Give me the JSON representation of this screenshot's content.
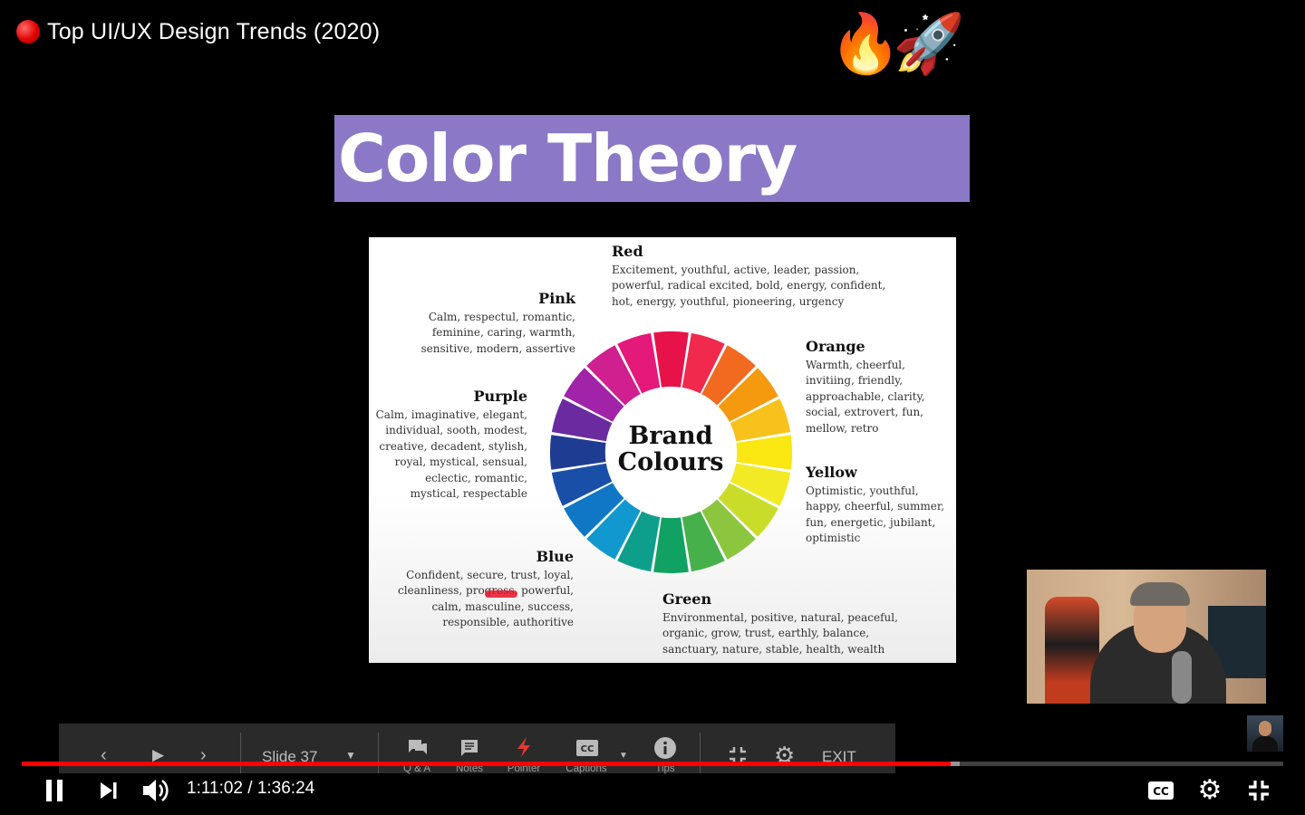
{
  "video": {
    "title": "Top UI/UX Design Trends (2020)",
    "time_current": "1:11:02",
    "time_total": "1:36:24",
    "time_separator": " / ",
    "progress_played": 0.7367,
    "progress_buffered": 0.7435
  },
  "slide": {
    "banner_title": "Color Theory",
    "banner_emoji_1": "🔥",
    "banner_emoji_2": "🚀",
    "wheel_center": [
      "Brand",
      "Colours"
    ],
    "colors": {
      "red": {
        "name": "Red",
        "lines": [
          "Excitement, youthful, active, leader, passion,",
          "powerful,  radical excited, bold, energy, confident,",
          "hot, energy, youthful, pioneering, urgency"
        ]
      },
      "pink": {
        "name": "Pink",
        "lines": [
          "Calm, respectul, romantic,",
          "feminine, caring, warmth,",
          "sensitive, modern, assertive"
        ]
      },
      "orange": {
        "name": "Orange",
        "lines": [
          "Warmth, cheerful,",
          "invitiing,  friendly,",
          "approachable, clarity,",
          "social, extrovert, fun,",
          "mellow, retro"
        ]
      },
      "purple": {
        "name": "Purple",
        "lines": [
          "Calm, imaginative, elegant,",
          "individual, sooth, modest,",
          "creative, decadent, stylish,",
          "royal, mystical, sensual,",
          "eclectic, romantic,",
          "mystical, respectable"
        ]
      },
      "yellow": {
        "name": "Yellow",
        "lines": [
          "Optimistic, youthful,",
          "happy, cheerful, summer,",
          "fun, energetic, jubilant,",
          "optimistic"
        ]
      },
      "blue": {
        "name": "Blue",
        "lines": [
          "Confident, secure, trust, loyal,",
          "cleanliness, progress, powerful,",
          "calm, masculine, success,",
          "responsible, authoritive"
        ]
      },
      "green": {
        "name": "Green",
        "lines": [
          "Environmental, positive, natural, peaceful,",
          "organic, grow, trust, earthly, balance,",
          "sanctuary, nature, stable, health, wealth"
        ]
      }
    },
    "wheel_segments": [
      "#e8124a",
      "#f0294d",
      "#f26a1f",
      "#f59a0f",
      "#f8c21c",
      "#fbe711",
      "#f2ea24",
      "#c9dc2a",
      "#8cc63f",
      "#46b14a",
      "#11a263",
      "#0e9e8c",
      "#1199cf",
      "#0f77c5",
      "#1a4fa8",
      "#1f3c93",
      "#6a2aa0",
      "#a123a8",
      "#d01f8e",
      "#e4197a"
    ]
  },
  "slides_toolbar": {
    "slide_label": "Slide 37",
    "items": [
      "Q & A",
      "Notes",
      "Pointer",
      "Captions",
      "Tips"
    ],
    "exit_label": "EXIT"
  },
  "controls": {
    "pause": "pause-icon",
    "next": "next-icon",
    "volume": "volume-icon",
    "cc": "cc-icon",
    "settings": "gear-icon",
    "exit_fullscreen": "exit-fullscreen-icon"
  }
}
